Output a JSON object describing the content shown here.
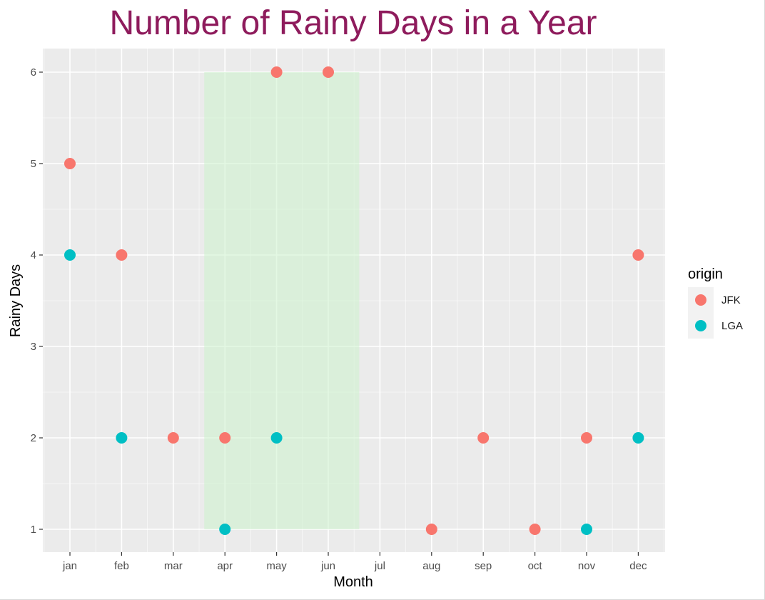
{
  "chart_data": {
    "type": "scatter",
    "title": "Number of Rainy Days in a Year",
    "xlabel": "Month",
    "ylabel": "Rainy Days",
    "categories": [
      "jan",
      "feb",
      "mar",
      "apr",
      "may",
      "jun",
      "jul",
      "aug",
      "sep",
      "oct",
      "nov",
      "dec"
    ],
    "ylim": [
      0.8,
      6.25
    ],
    "yticks": [
      1,
      2,
      3,
      4,
      5,
      6
    ],
    "legend_title": "origin",
    "legend_position": "right",
    "grid": true,
    "highlight": {
      "x_range": [
        "apr",
        "jun"
      ],
      "y_range": [
        1,
        6
      ],
      "color": "#d9ecd9"
    },
    "series": [
      {
        "name": "JFK",
        "color": "#F8766D",
        "points": [
          {
            "x": "jan",
            "y": 5
          },
          {
            "x": "feb",
            "y": 4
          },
          {
            "x": "mar",
            "y": 2
          },
          {
            "x": "apr",
            "y": 2
          },
          {
            "x": "may",
            "y": 6
          },
          {
            "x": "jun",
            "y": 6
          },
          {
            "x": "aug",
            "y": 1
          },
          {
            "x": "sep",
            "y": 2
          },
          {
            "x": "oct",
            "y": 1
          },
          {
            "x": "nov",
            "y": 2
          },
          {
            "x": "dec",
            "y": 4
          }
        ]
      },
      {
        "name": "LGA",
        "color": "#00BFC4",
        "points": [
          {
            "x": "jan",
            "y": 4
          },
          {
            "x": "feb",
            "y": 2
          },
          {
            "x": "apr",
            "y": 1
          },
          {
            "x": "may",
            "y": 2
          },
          {
            "x": "nov",
            "y": 1
          },
          {
            "x": "dec",
            "y": 2
          }
        ]
      }
    ]
  },
  "colors": {
    "title": "#8E1B5C",
    "panel_bg": "#EBEBEB",
    "grid": "#FFFFFF",
    "tick_text": "#4D4D4D",
    "axis_title": "#000000"
  }
}
